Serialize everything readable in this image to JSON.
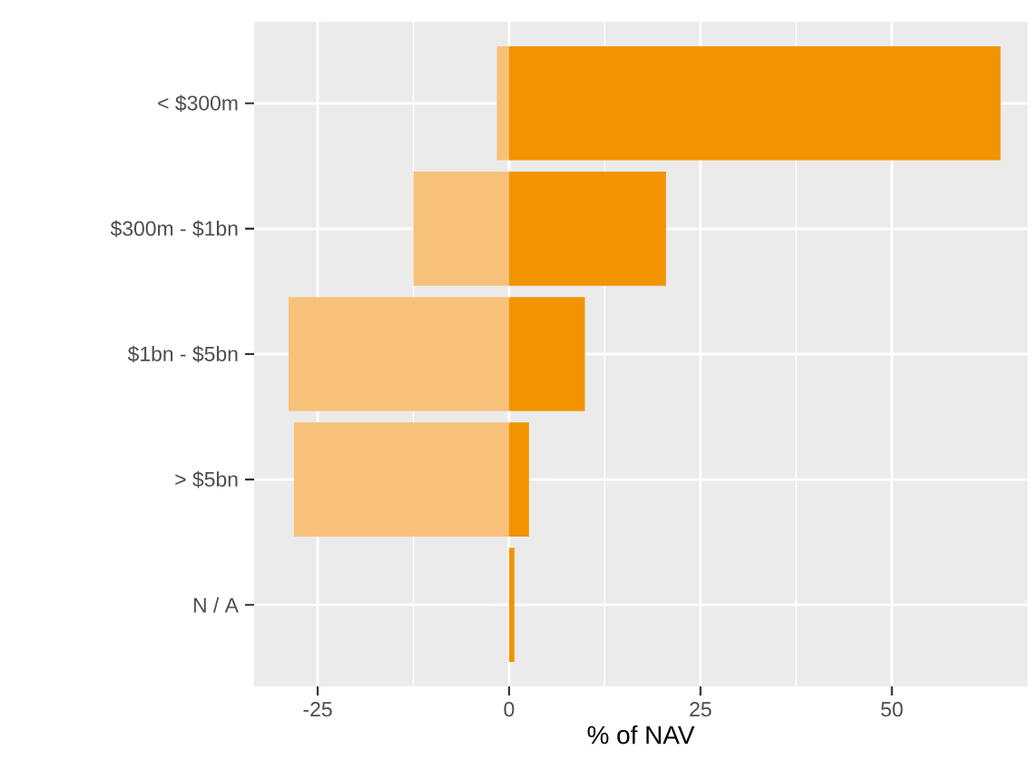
{
  "chart_data": {
    "type": "bar",
    "orientation": "horizontal",
    "xlabel": "% of NAV",
    "categories": [
      "< $300m",
      "$300m - $1bn",
      "$1bn - $5bn",
      "> $5bn",
      "N / A"
    ],
    "series": [
      {
        "color": "#f8c17a",
        "values": [
          -1.6,
          -12.5,
          -28.8,
          -28.1,
          0
        ]
      },
      {
        "color": "#f29400",
        "values": [
          64.2,
          20.5,
          9.9,
          2.6,
          0.7
        ]
      }
    ],
    "stacked": true,
    "xlim": [
      -33.3,
      67.7
    ],
    "xticks": [
      -25,
      0,
      25,
      50
    ],
    "grid": true
  }
}
